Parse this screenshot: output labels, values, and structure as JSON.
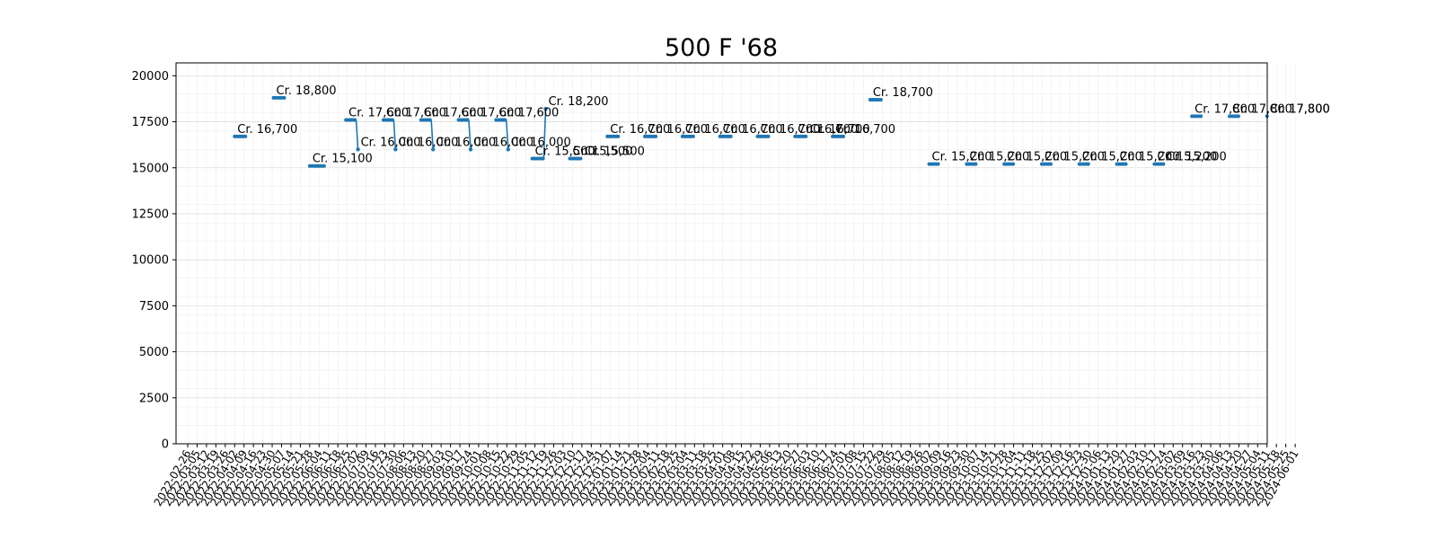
{
  "chart_data": {
    "type": "line",
    "title": "500 F '68",
    "xlabel": "",
    "ylabel": "",
    "ylim": [
      0,
      20700
    ],
    "y_ticks": [
      0,
      2500,
      5000,
      7500,
      10000,
      12500,
      15000,
      17500,
      20000
    ],
    "grid": true,
    "color": "#1f77b4",
    "x_ticks": [
      "2022-02-26",
      "2022-03-05",
      "2022-03-12",
      "2022-03-19",
      "2022-03-26",
      "2022-04-02",
      "2022-04-09",
      "2022-04-16",
      "2022-04-23",
      "2022-04-30",
      "2022-05-07",
      "2022-05-14",
      "2022-05-21",
      "2022-05-28",
      "2022-06-04",
      "2022-06-11",
      "2022-06-18",
      "2022-06-25",
      "2022-07-02",
      "2022-07-09",
      "2022-07-16",
      "2022-07-23",
      "2022-07-30",
      "2022-08-06",
      "2022-08-13",
      "2022-08-20",
      "2022-08-27",
      "2022-09-03",
      "2022-09-10",
      "2022-09-17",
      "2022-09-24",
      "2022-10-01",
      "2022-10-08",
      "2022-10-15",
      "2022-10-22",
      "2022-10-29",
      "2022-11-05",
      "2022-11-12",
      "2022-11-19",
      "2022-11-26",
      "2022-12-03",
      "2022-12-10",
      "2022-12-17",
      "2022-12-24",
      "2022-12-31",
      "2023-01-07",
      "2023-01-14",
      "2023-01-21",
      "2023-01-28",
      "2023-02-04",
      "2023-02-11",
      "2023-02-18",
      "2023-02-25",
      "2023-03-04",
      "2023-03-11",
      "2023-03-18",
      "2023-03-25",
      "2023-04-01",
      "2023-04-08",
      "2023-04-15",
      "2023-04-22",
      "2023-04-29",
      "2023-05-06",
      "2023-05-13",
      "2023-05-20",
      "2023-05-27",
      "2023-06-03",
      "2023-06-10",
      "2023-06-17",
      "2023-06-24",
      "2023-07-01",
      "2023-07-08",
      "2023-07-15",
      "2023-07-22",
      "2023-07-29",
      "2023-08-05",
      "2023-08-12",
      "2023-08-19",
      "2023-08-26",
      "2023-09-02",
      "2023-09-09",
      "2023-09-16",
      "2023-09-23",
      "2023-09-30",
      "2023-10-07",
      "2023-10-14",
      "2023-10-21",
      "2023-10-28",
      "2023-11-04",
      "2023-11-11",
      "2023-11-18",
      "2023-11-25",
      "2023-12-02",
      "2023-12-09",
      "2023-12-16",
      "2023-12-23",
      "2023-12-30",
      "2024-01-06",
      "2024-01-13",
      "2024-01-20",
      "2024-01-27",
      "2024-02-03",
      "2024-02-10",
      "2024-02-17",
      "2024-02-24",
      "2024-03-02",
      "2024-03-09",
      "2024-03-16",
      "2024-03-23",
      "2024-03-30",
      "2024-04-06",
      "2024-04-13",
      "2024-04-20",
      "2024-04-27",
      "2024-05-04",
      "2024-05-11",
      "2024-05-18",
      "2024-05-25",
      "2024-06-01"
    ],
    "series": [
      {
        "segments": [
          {
            "x_start": "2022-04-02",
            "x_end": "2022-04-11",
            "y": [
              16700
            ],
            "label": "Cr. 16,700"
          },
          {
            "x_start": "2022-05-01",
            "x_end": "2022-05-10",
            "y": [
              18800
            ],
            "label": "Cr. 18,800"
          },
          {
            "x_start": "2022-05-28",
            "x_end": "2022-06-08",
            "y": [
              15100
            ],
            "label": "Cr. 15,100"
          },
          {
            "x_start": "2022-06-24",
            "x_end": "2022-07-03",
            "y": [
              17600,
              16000
            ],
            "label": "Cr. 17,600",
            "drop_label": "Cr. 16,000"
          },
          {
            "x_start": "2022-07-22",
            "x_end": "2022-07-31",
            "y": [
              17600,
              16000
            ],
            "label": "Cr. 17,600",
            "drop_label": "Cr. 16,000"
          },
          {
            "x_start": "2022-08-19",
            "x_end": "2022-08-28",
            "y": [
              17600,
              16000
            ],
            "label": "Cr. 17,600",
            "drop_label": "Cr. 16,000"
          },
          {
            "x_start": "2022-09-16",
            "x_end": "2022-09-25",
            "y": [
              17600,
              16000
            ],
            "label": "Cr. 17,600",
            "drop_label": "Cr. 16,000"
          },
          {
            "x_start": "2022-10-14",
            "x_end": "2022-10-23",
            "y": [
              17600,
              16000
            ],
            "label": "Cr. 17,600",
            "drop_label": "Cr. 16,000"
          },
          {
            "x_start": "2022-11-10",
            "x_end": "2022-11-20",
            "y": [
              15500,
              18200
            ],
            "label": "Cr. 15,500",
            "drop_label": "Cr. 18,200"
          },
          {
            "x_start": "2022-12-08",
            "x_end": "2022-12-17",
            "y": [
              15500
            ],
            "label": "Cr. 15,500"
          },
          {
            "x_start": "2023-01-05",
            "x_end": "2023-01-14",
            "y": [
              16700
            ],
            "label": "Cr. 16,700"
          },
          {
            "x_start": "2023-02-02",
            "x_end": "2023-02-11",
            "y": [
              16700
            ],
            "label": "Cr. 16,700"
          },
          {
            "x_start": "2023-03-02",
            "x_end": "2023-03-11",
            "y": [
              16700
            ],
            "label": "Cr. 16,700"
          },
          {
            "x_start": "2023-03-30",
            "x_end": "2023-04-08",
            "y": [
              16700
            ],
            "label": "Cr. 16,700"
          },
          {
            "x_start": "2023-04-27",
            "x_end": "2023-05-06",
            "y": [
              16700
            ],
            "label": "Cr. 16,700"
          },
          {
            "x_start": "2023-05-25",
            "x_end": "2023-06-03",
            "y": [
              16700
            ],
            "label": "Cr. 16,700"
          },
          {
            "x_start": "2023-06-22",
            "x_end": "2023-07-01",
            "y": [
              16700
            ],
            "label": "Cr. 16,700"
          },
          {
            "x_start": "2023-07-20",
            "x_end": "2023-07-29",
            "y": [
              18700
            ],
            "label": "Cr. 18,700"
          },
          {
            "x_start": "2023-09-02",
            "x_end": "2023-09-09",
            "y": [
              15200
            ],
            "label": "Cr. 15,200"
          },
          {
            "x_start": "2023-09-30",
            "x_end": "2023-10-07",
            "y": [
              15200
            ],
            "label": "Cr. 15,200"
          },
          {
            "x_start": "2023-10-28",
            "x_end": "2023-11-04",
            "y": [
              15200
            ],
            "label": "Cr. 15,200"
          },
          {
            "x_start": "2023-11-25",
            "x_end": "2023-12-02",
            "y": [
              15200
            ],
            "label": "Cr. 15,200"
          },
          {
            "x_start": "2023-12-23",
            "x_end": "2023-12-30",
            "y": [
              15200
            ],
            "label": "Cr. 15,200"
          },
          {
            "x_start": "2024-01-20",
            "x_end": "2024-01-27",
            "y": [
              15200
            ],
            "label": "Cr. 15,200"
          },
          {
            "x_start": "2024-02-17",
            "x_end": "2024-02-24",
            "y": [
              15200
            ],
            "label": "Cr. 15,200"
          },
          {
            "x_start": "2024-03-16",
            "x_end": "2024-03-23",
            "y": [
              17800
            ],
            "label": "Cr. 17,800"
          },
          {
            "x_start": "2024-04-13",
            "x_end": "2024-04-20",
            "y": [
              17800
            ],
            "label": "Cr. 17,800"
          },
          {
            "x_start": "2024-05-11",
            "x_end": "2024-05-11",
            "y": [
              17800
            ],
            "label": "Cr. 17,800"
          }
        ],
        "extra_labels": [
          {
            "x": "2022-12-17",
            "y": 15500,
            "label": "Cr. 15,500"
          },
          {
            "x": "2023-06-03",
            "y": 16700,
            "label": "Cr. 16,700"
          },
          {
            "x": "2024-05-11",
            "y": 17800,
            "label": "Cr. 17,800"
          },
          {
            "x": "2024-02-24",
            "y": 15200,
            "label": "Cr. 15,200"
          }
        ]
      }
    ]
  }
}
